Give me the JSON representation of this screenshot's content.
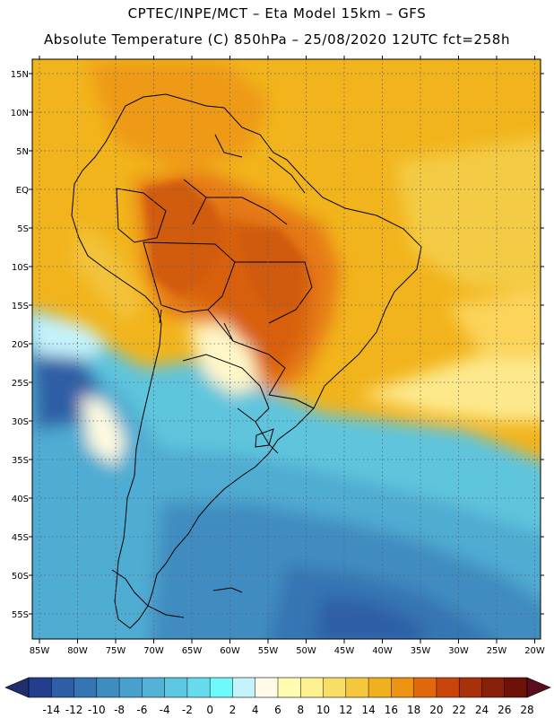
{
  "header": {
    "title_line1": "CPTEC/INPE/MCT –  Eta Model 15km – GFS",
    "title_line2": "Absolute Temperature (C) 850hPa – 25/08/2020 12UTC fct=258h"
  },
  "map": {
    "lon_labels": [
      "85W",
      "80W",
      "75W",
      "70W",
      "65W",
      "60W",
      "55W",
      "50W",
      "45W",
      "40W",
      "35W",
      "30W",
      "25W",
      "20W"
    ],
    "lat_labels": [
      "15N",
      "10N",
      "5N",
      "EQ",
      "5S",
      "10S",
      "15S",
      "20S",
      "25S",
      "30S",
      "35S",
      "40S",
      "45S",
      "50S",
      "55S"
    ]
  },
  "colorbar": {
    "labels": [
      "-14",
      "-12",
      "-10",
      "-8",
      "-6",
      "-4",
      "-2",
      "0",
      "2",
      "4",
      "6",
      "8",
      "10",
      "12",
      "14",
      "16",
      "18",
      "20",
      "22",
      "24",
      "26",
      "28"
    ],
    "colors": [
      "#233e8e",
      "#2d5ea6",
      "#3575b3",
      "#3f8cc0",
      "#48a0cc",
      "#52b3d6",
      "#5dc6e0",
      "#66dbec",
      "#6ef9fb",
      "#c4f3fb",
      "#fffbe6",
      "#fffbb0",
      "#fdf190",
      "#f8dd66",
      "#f4c73e",
      "#f1b11e",
      "#ee9212",
      "#e2680f",
      "#c8460b",
      "#a8300b",
      "#872008",
      "#6e1208"
    ],
    "low_arrow_color": "#1f2f6e",
    "high_arrow_color": "#5b0d1f"
  }
}
